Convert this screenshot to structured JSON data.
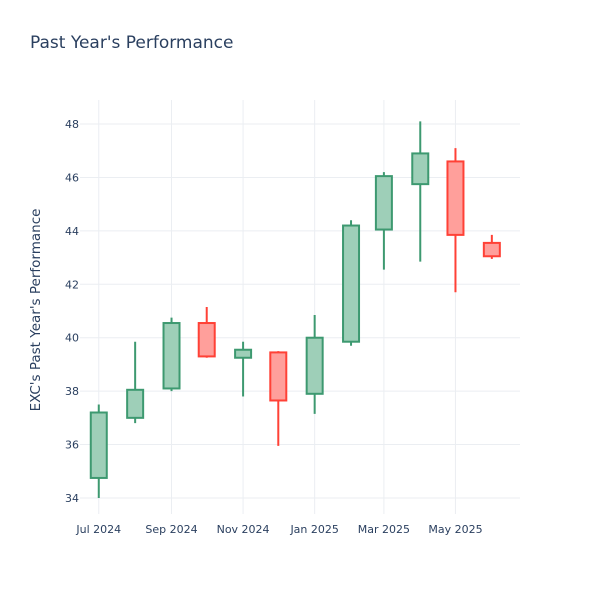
{
  "chart_data": {
    "type": "candlestick",
    "title": "Past Year's Performance",
    "xlabel": "",
    "ylabel": "EXC's Past Year's Performance",
    "ylim": [
      33.4,
      48.9
    ],
    "xlim": [
      "2024-06-15",
      "2025-06-25"
    ],
    "yticks": [
      34,
      36,
      38,
      40,
      42,
      44,
      46,
      48
    ],
    "xticks": [
      {
        "date": "2024-07-01",
        "label": "Jul 2024"
      },
      {
        "date": "2024-09-01",
        "label": "Sep 2024"
      },
      {
        "date": "2024-11-01",
        "label": "Nov 2024"
      },
      {
        "date": "2025-01-01",
        "label": "Jan 2025"
      },
      {
        "date": "2025-03-01",
        "label": "Mar 2025"
      },
      {
        "date": "2025-05-01",
        "label": "May 2025"
      }
    ],
    "grid": true,
    "legend": "none",
    "colors": {
      "increasing_line": "#3d9970",
      "increasing_fill": "#9ecfb8",
      "decreasing_line": "#ff4136",
      "decreasing_fill": "#ff9f9b",
      "grid": "#ebeef2",
      "text": "#2a3f5f"
    },
    "candles": [
      {
        "date": "2024-07-01",
        "open": 34.75,
        "high": 37.5,
        "low": 34.0,
        "close": 37.2
      },
      {
        "date": "2024-08-01",
        "open": 37.0,
        "high": 39.85,
        "low": 36.8,
        "close": 38.05
      },
      {
        "date": "2024-09-01",
        "open": 38.1,
        "high": 40.75,
        "low": 38.0,
        "close": 40.55
      },
      {
        "date": "2024-10-01",
        "open": 40.55,
        "high": 41.15,
        "low": 39.25,
        "close": 39.3
      },
      {
        "date": "2024-11-01",
        "open": 39.25,
        "high": 39.85,
        "low": 37.8,
        "close": 39.55
      },
      {
        "date": "2024-12-01",
        "open": 39.45,
        "high": 39.5,
        "low": 35.95,
        "close": 37.65
      },
      {
        "date": "2025-01-01",
        "open": 37.9,
        "high": 40.85,
        "low": 37.15,
        "close": 40.0
      },
      {
        "date": "2025-02-01",
        "open": 39.85,
        "high": 44.4,
        "low": 39.7,
        "close": 44.2
      },
      {
        "date": "2025-03-01",
        "open": 44.05,
        "high": 46.2,
        "low": 42.55,
        "close": 46.05
      },
      {
        "date": "2025-04-01",
        "open": 45.75,
        "high": 48.1,
        "low": 42.85,
        "close": 46.9
      },
      {
        "date": "2025-05-01",
        "open": 46.6,
        "high": 47.1,
        "low": 41.7,
        "close": 43.85
      },
      {
        "date": "2025-06-01",
        "open": 43.55,
        "high": 43.85,
        "low": 42.95,
        "close": 43.05
      }
    ]
  }
}
